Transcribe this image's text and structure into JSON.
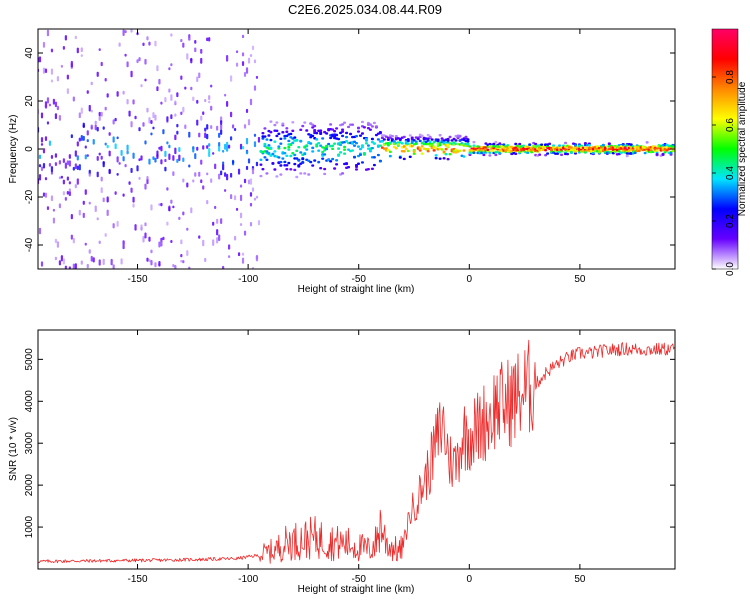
{
  "title": "C2E6.2025.034.08.44.R09",
  "colors": {
    "snr_line": "#ee2a2a",
    "frame": "#000000"
  },
  "chart_data": [
    {
      "type": "heatmap",
      "title": "C2E6.2025.034.08.44.R09",
      "xlabel": "Height of straight line (km)",
      "ylabel": "Frequency (Hz)",
      "xlim": [
        -195,
        93
      ],
      "ylim": [
        -50,
        50
      ],
      "x_ticks": [
        -150,
        -100,
        -50,
        0,
        50
      ],
      "x_tick_labels": [
        "-150",
        "-100",
        "-50",
        "0",
        "50"
      ],
      "y_ticks": [
        -40,
        -20,
        0,
        20,
        40
      ],
      "y_tick_labels": [
        "-40",
        "-20",
        "0",
        "20",
        "40"
      ],
      "colorbar": {
        "label": "Normalized spectral amplitude",
        "range": [
          0,
          1
        ],
        "ticks": [
          0,
          0.2,
          0.4,
          0.6,
          0.8
        ],
        "tick_labels": [
          "0.0",
          "0.2",
          "0.4",
          "0.6",
          "0.8"
        ],
        "colormap": [
          "#ffffff",
          "#6600ff",
          "#0000ff",
          "#00e5ff",
          "#00ff00",
          "#ffff00",
          "#ff8800",
          "#ff0000",
          "#ff0066"
        ]
      },
      "description_trend": [
        {
          "x_range": [
            -195,
            -95
          ],
          "spread_hz": 50,
          "peak_amplitude": 0.25
        },
        {
          "x_range": [
            -95,
            -40
          ],
          "spread_hz": 12,
          "peak_amplitude": 0.5
        },
        {
          "x_range": [
            -40,
            0
          ],
          "spread_hz": 5,
          "peak_amplitude": 0.85
        },
        {
          "x_range": [
            0,
            93
          ],
          "spread_hz": 2,
          "peak_amplitude": 1.0
        }
      ]
    },
    {
      "type": "line",
      "xlabel": "Height of straight line (km)",
      "ylabel": "SNR (10 * v/v)",
      "xlim": [
        -195,
        93
      ],
      "ylim": [
        0,
        5700
      ],
      "x_ticks": [
        -150,
        -100,
        -50,
        0,
        50
      ],
      "x_tick_labels": [
        "-150",
        "-100",
        "-50",
        "0",
        "50"
      ],
      "y_ticks": [
        1000,
        2000,
        3000,
        4000,
        5000
      ],
      "y_tick_labels": [
        "1000",
        "2000",
        "3000",
        "4000",
        "5000"
      ],
      "series": [
        {
          "name": "SNR",
          "x": [
            -195,
            -180,
            -160,
            -140,
            -120,
            -105,
            -95,
            -88,
            -82,
            -75,
            -70,
            -65,
            -60,
            -55,
            -50,
            -45,
            -42,
            -40,
            -38,
            -36,
            -34,
            -32,
            -30,
            -27,
            -24,
            -21,
            -18,
            -15,
            -12,
            -9,
            -6,
            -3,
            0,
            3,
            6,
            9,
            12,
            15,
            20,
            25,
            30,
            35,
            40,
            45,
            50,
            55,
            60,
            70,
            80,
            93
          ],
          "values": [
            180,
            190,
            200,
            210,
            230,
            250,
            330,
            450,
            650,
            700,
            750,
            680,
            620,
            600,
            520,
            460,
            650,
            1100,
            700,
            550,
            500,
            400,
            520,
            1300,
            1600,
            2000,
            2400,
            3000,
            3500,
            2600,
            2500,
            3200,
            3200,
            3300,
            3500,
            3600,
            3900,
            3900,
            4050,
            4250,
            4400,
            4700,
            4900,
            5050,
            5150,
            5150,
            5200,
            5250,
            5230,
            5250
          ]
        }
      ]
    }
  ]
}
